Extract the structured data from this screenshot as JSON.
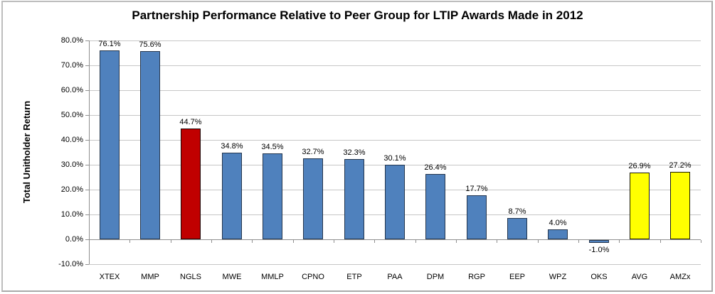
{
  "chart_data": {
    "type": "bar",
    "title": "Partnership Performance Relative to Peer Group for LTIP Awards Made in 2012",
    "xlabel": "",
    "ylabel": "Total Unitholder Return",
    "categories": [
      "XTEX",
      "MMP",
      "NGLS",
      "MWE",
      "MMLP",
      "CPNO",
      "ETP",
      "PAA",
      "DPM",
      "RGP",
      "EEP",
      "WPZ",
      "OKS",
      "AVG",
      "AMZx"
    ],
    "values": [
      76.1,
      75.6,
      44.7,
      34.8,
      34.5,
      32.7,
      32.3,
      30.1,
      26.4,
      17.7,
      8.7,
      4.0,
      -1.0,
      26.9,
      27.2
    ],
    "value_labels": [
      "76.1%",
      "75.6%",
      "44.7%",
      "34.8%",
      "34.5%",
      "32.7%",
      "32.3%",
      "30.1%",
      "26.4%",
      "17.7%",
      "8.7%",
      "4.0%",
      "-1.0%",
      "26.9%",
      "27.2%"
    ],
    "bar_fills": [
      "#4F81BD",
      "#4F81BD",
      "#C00000",
      "#4F81BD",
      "#4F81BD",
      "#4F81BD",
      "#4F81BD",
      "#4F81BD",
      "#4F81BD",
      "#4F81BD",
      "#4F81BD",
      "#4F81BD",
      "#4F81BD",
      "#FFFF00",
      "#FFFF00"
    ],
    "bar_borders": [
      "#24364E",
      "#24364E",
      "#1A0505",
      "#24364E",
      "#24364E",
      "#24364E",
      "#24364E",
      "#24364E",
      "#24364E",
      "#24364E",
      "#24364E",
      "#24364E",
      "#24364E",
      "#1A1A05",
      "#1A1A05"
    ],
    "ylim": [
      -10,
      80
    ],
    "ytick_interval": 10,
    "ytick_labels": [
      "80.0%",
      "70.0%",
      "60.0%",
      "50.0%",
      "40.0%",
      "30.0%",
      "20.0%",
      "10.0%",
      "0.0%",
      "-10.0%"
    ],
    "grid": true,
    "legend": "none",
    "colors": {
      "gridline": "#C6C6C6",
      "axis": "#8F8F8F",
      "text": "#000000",
      "background": "#FFFFFF",
      "highlight_bar": "#C00000",
      "summary_bar": "#FFFF00",
      "default_bar": "#4F81BD"
    }
  }
}
